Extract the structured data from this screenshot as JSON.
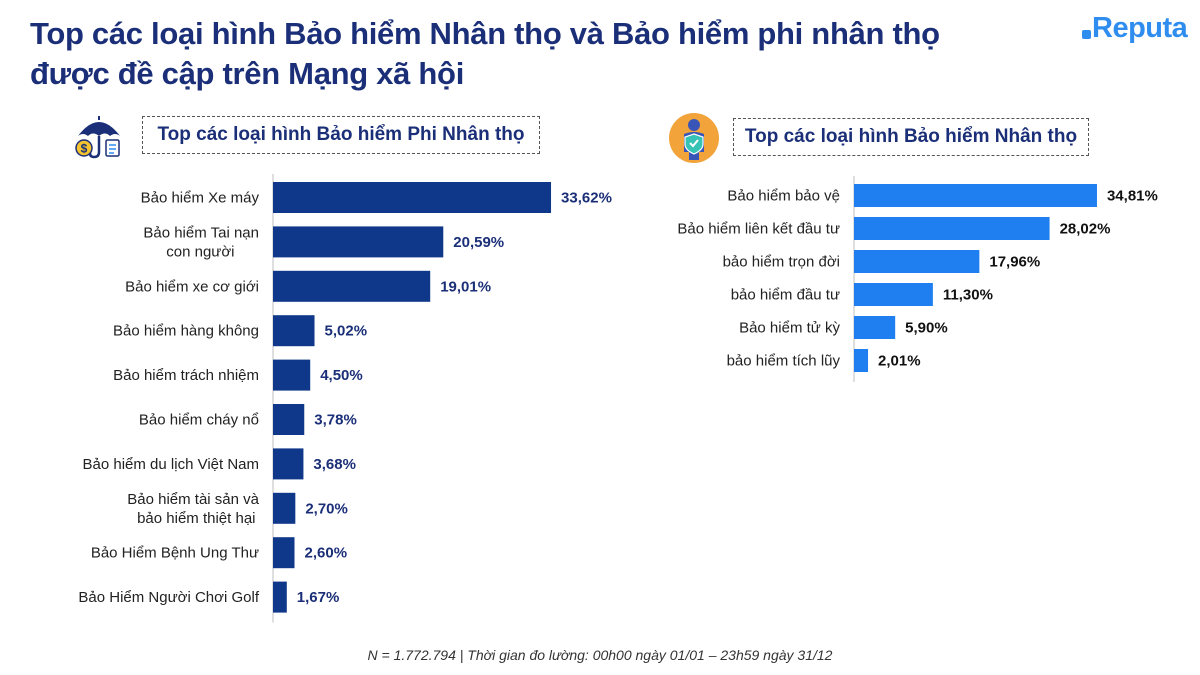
{
  "title_lines": [
    "Top các loại hình Bảo hiểm Nhân thọ và Bảo hiểm phi nhân thọ",
    "được đề cập trên Mạng xã hội"
  ],
  "logo": {
    "text": "Reputa",
    "color": "#2f8df0"
  },
  "footnote": "N = 1.772.794 | Thời gian đo lường: 00h00 ngày 01/01 – 23h59 ngày 31/12",
  "icons": {
    "left": "umbrella-money-icon",
    "right": "person-shield-icon"
  },
  "chart_data": [
    {
      "type": "bar",
      "orientation": "horizontal",
      "title": "Top các loại hình Bảo hiểm Phi Nhân thọ",
      "color": "#10388a",
      "categories": [
        [
          "Bảo hiểm Xe máy"
        ],
        [
          "Bảo hiểm Tai nạn",
          "con người"
        ],
        [
          "Bảo hiểm xe cơ giới"
        ],
        [
          "Bảo hiểm hàng không"
        ],
        [
          "Bảo hiểm trách nhiệm"
        ],
        [
          "Bảo hiểm cháy nổ"
        ],
        [
          "Bảo hiểm du lịch Việt Nam"
        ],
        [
          "Bảo hiểm tài sản và",
          "bảo hiểm thiệt hại"
        ],
        [
          "Bảo Hiểm Bệnh Ung Thư"
        ],
        [
          "Bảo Hiểm Người Chơi Golf"
        ]
      ],
      "values": [
        33.62,
        20.59,
        19.01,
        5.02,
        4.5,
        3.78,
        3.68,
        2.7,
        2.6,
        1.67
      ],
      "value_labels": [
        "33,62%",
        "20,59%",
        "19,01%",
        "5,02%",
        "4,50%",
        "3,78%",
        "3,68%",
        "2,70%",
        "2,60%",
        "1,67%"
      ]
    },
    {
      "type": "bar",
      "orientation": "horizontal",
      "title": "Top các loại hình Bảo hiểm Nhân thọ",
      "color": "#1f7ef0",
      "categories": [
        [
          "Bảo hiểm bảo vệ"
        ],
        [
          "Bảo hiểm liên kết đầu tư"
        ],
        [
          "bảo hiểm trọn đời"
        ],
        [
          "bảo hiểm đầu tư"
        ],
        [
          "Bảo hiểm tử kỳ"
        ],
        [
          "bảo hiểm tích lũy"
        ]
      ],
      "values": [
        34.81,
        28.02,
        17.96,
        11.3,
        5.9,
        2.01
      ],
      "value_labels": [
        "34,81%",
        "28,02%",
        "17,96%",
        "11,30%",
        "5,90%",
        "2,01%"
      ]
    }
  ]
}
